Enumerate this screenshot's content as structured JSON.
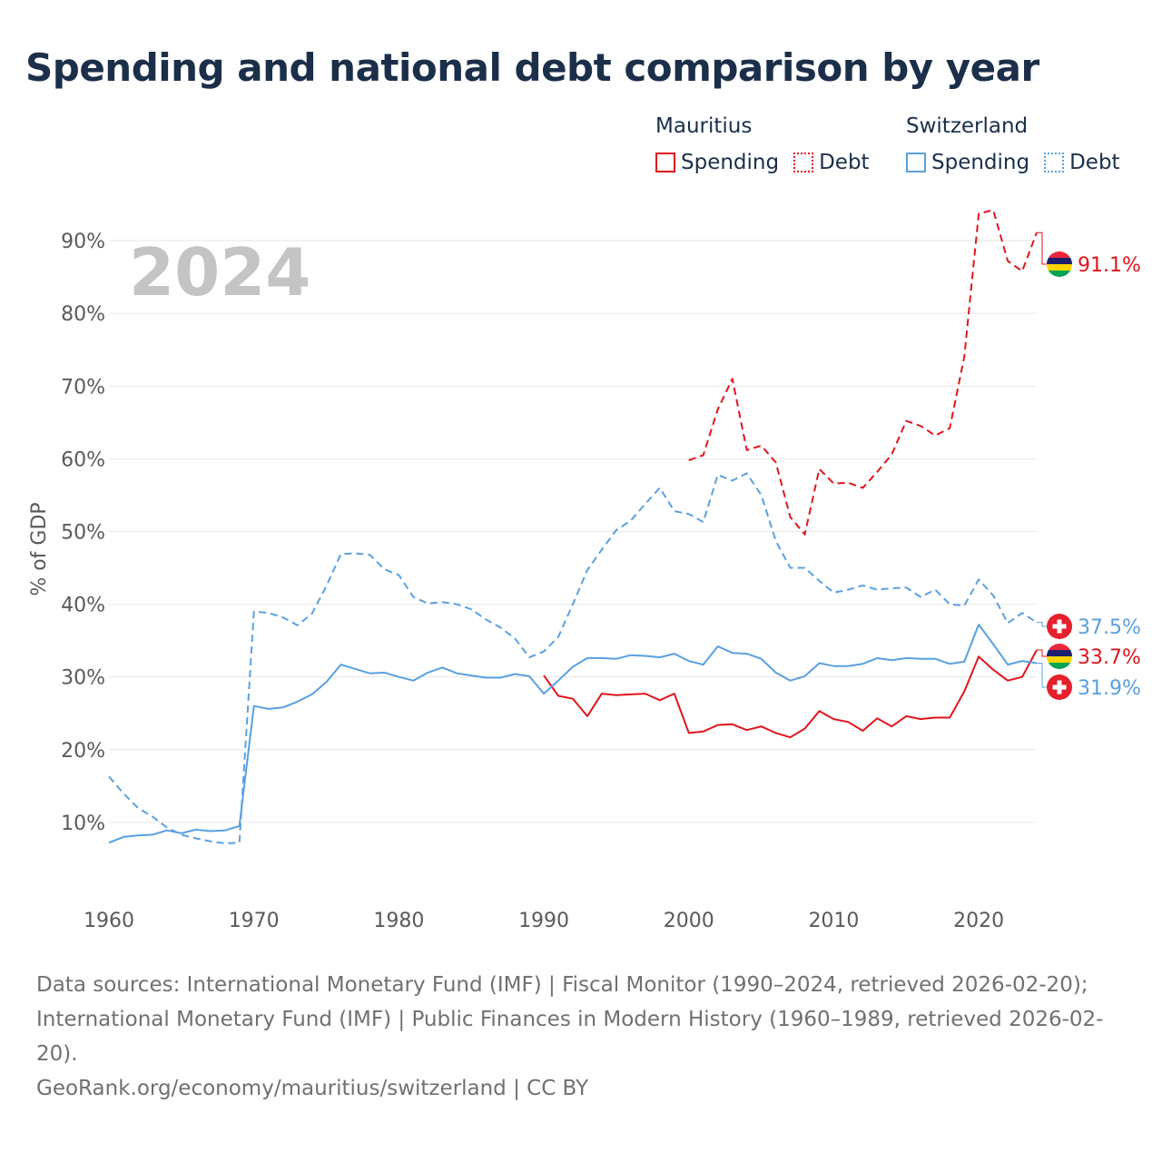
{
  "title": "Spending and national debt comparison by year",
  "legend": {
    "groups": [
      {
        "country": "Mauritius",
        "spending_label": "Spending",
        "debt_label": "Debt",
        "color": "#e0151c"
      },
      {
        "country": "Switzerland",
        "spending_label": "Spending",
        "debt_label": "Debt",
        "color": "#5aa0e0"
      }
    ]
  },
  "colors": {
    "mauritius": "#e0151c",
    "switzerland": "#5aa0e0",
    "year_watermark": "#c4c4c4",
    "axis_text": "#5a5a5a",
    "grid": "#e6e6e6"
  },
  "footer": {
    "sources": "Data sources: International Monetary Fund (IMF) | Fiscal Monitor (1990–2024, retrieved 2026-02-20); International Monetary Fund (IMF) | Public Finances in Modern History (1960–1989, retrieved 2026-02-20).",
    "credit": "GeoRank.org/economy/mauritius/switzerland | CC BY"
  },
  "chart_data": {
    "type": "line",
    "year_label": "2024",
    "ylabel": "% of GDP",
    "xlabel": "",
    "xlim": [
      1960,
      2024
    ],
    "ylim": [
      0,
      95
    ],
    "x_ticks": [
      1960,
      1970,
      1980,
      1990,
      2000,
      2010,
      2020
    ],
    "x_tick_labels": [
      "1960",
      "1970",
      "1980",
      "1990",
      "2000",
      "2010",
      "2020"
    ],
    "y_ticks": [
      10,
      20,
      30,
      40,
      50,
      60,
      70,
      80,
      90
    ],
    "y_tick_labels": [
      "10%",
      "20%",
      "30%",
      "40%",
      "50%",
      "60%",
      "70%",
      "80%",
      "90%"
    ],
    "series": [
      {
        "name": "Mauritius Debt",
        "country": "Mauritius",
        "metric": "Debt",
        "style": "dashed",
        "flag": "mauritius",
        "end_label": "91.1%",
        "end_value": 91.1,
        "x": [
          2000,
          2001,
          2002,
          2003,
          2004,
          2005,
          2006,
          2007,
          2008,
          2009,
          2010,
          2011,
          2012,
          2013,
          2014,
          2015,
          2016,
          2017,
          2018,
          2019,
          2020,
          2021,
          2022,
          2023,
          2024
        ],
        "values": [
          59.8,
          60.5,
          66.8,
          71.0,
          61.2,
          61.8,
          59.5,
          52.0,
          49.6,
          58.6,
          56.6,
          56.7,
          56.0,
          58.2,
          60.6,
          65.2,
          64.5,
          63.2,
          64.2,
          74.0,
          93.7,
          94.2,
          87.2,
          85.8,
          91.1
        ]
      },
      {
        "name": "Mauritius Spending",
        "country": "Mauritius",
        "metric": "Spending",
        "style": "solid",
        "flag": "mauritius",
        "end_label": "33.7%",
        "end_value": 33.7,
        "x": [
          1990,
          1991,
          1992,
          1993,
          1994,
          1995,
          1996,
          1997,
          1998,
          1999,
          2000,
          2001,
          2002,
          2003,
          2004,
          2005,
          2006,
          2007,
          2008,
          2009,
          2010,
          2011,
          2012,
          2013,
          2014,
          2015,
          2016,
          2017,
          2018,
          2019,
          2020,
          2021,
          2022,
          2023,
          2024
        ],
        "values": [
          30.2,
          27.4,
          27.0,
          24.6,
          27.7,
          27.5,
          27.6,
          27.7,
          26.8,
          27.7,
          22.3,
          22.5,
          23.4,
          23.5,
          22.7,
          23.2,
          22.3,
          21.7,
          22.9,
          25.3,
          24.2,
          23.8,
          22.6,
          24.3,
          23.2,
          24.6,
          24.2,
          24.4,
          24.4,
          28.0,
          32.8,
          31.0,
          29.5,
          30.0,
          33.7
        ]
      },
      {
        "name": "Switzerland Debt",
        "country": "Switzerland",
        "metric": "Debt",
        "style": "dashed",
        "flag": "switzerland",
        "end_label": "37.5%",
        "end_value": 37.5,
        "x": [
          1960,
          1961,
          1962,
          1963,
          1964,
          1965,
          1966,
          1967,
          1968,
          1969,
          1970,
          1971,
          1972,
          1973,
          1974,
          1975,
          1976,
          1977,
          1978,
          1979,
          1980,
          1981,
          1982,
          1983,
          1984,
          1985,
          1986,
          1987,
          1988,
          1989,
          1990,
          1991,
          1992,
          1993,
          1994,
          1995,
          1996,
          1997,
          1998,
          1999,
          2000,
          2001,
          2002,
          2003,
          2004,
          2005,
          2006,
          2007,
          2008,
          2009,
          2010,
          2011,
          2012,
          2013,
          2014,
          2015,
          2016,
          2017,
          2018,
          2019,
          2020,
          2021,
          2022,
          2023,
          2024
        ],
        "values": [
          16.3,
          14.0,
          12.0,
          10.8,
          9.3,
          8.3,
          7.8,
          7.4,
          7.1,
          7.2,
          39.0,
          38.8,
          38.2,
          37.1,
          38.7,
          42.5,
          46.9,
          47.0,
          46.8,
          44.8,
          44.0,
          41.0,
          40.1,
          40.3,
          40.0,
          39.3,
          37.9,
          36.8,
          35.3,
          32.7,
          33.5,
          35.5,
          40.0,
          44.7,
          47.5,
          50.2,
          51.5,
          53.8,
          56.0,
          52.8,
          52.4,
          51.3,
          57.8,
          57.0,
          58.0,
          55.0,
          48.7,
          45.0,
          45.0,
          43.2,
          41.6,
          42.0,
          42.6,
          42.0,
          42.2,
          42.3,
          41.0,
          42.0,
          40.0,
          39.8,
          43.4,
          41.2,
          37.4,
          38.8,
          37.5
        ]
      },
      {
        "name": "Switzerland Spending",
        "country": "Switzerland",
        "metric": "Spending",
        "style": "solid",
        "flag": "switzerland",
        "end_label": "31.9%",
        "end_value": 31.9,
        "x": [
          1960,
          1961,
          1962,
          1963,
          1964,
          1965,
          1966,
          1967,
          1968,
          1969,
          1970,
          1971,
          1972,
          1973,
          1974,
          1975,
          1976,
          1977,
          1978,
          1979,
          1980,
          1981,
          1982,
          1983,
          1984,
          1985,
          1986,
          1987,
          1988,
          1989,
          1990,
          1991,
          1992,
          1993,
          1994,
          1995,
          1996,
          1997,
          1998,
          1999,
          2000,
          2001,
          2002,
          2003,
          2004,
          2005,
          2006,
          2007,
          2008,
          2009,
          2010,
          2011,
          2012,
          2013,
          2014,
          2015,
          2016,
          2017,
          2018,
          2019,
          2020,
          2021,
          2022,
          2023,
          2024
        ],
        "values": [
          7.2,
          8.0,
          8.2,
          8.3,
          8.9,
          8.5,
          9.0,
          8.8,
          8.9,
          9.5,
          26.0,
          25.6,
          25.8,
          26.6,
          27.6,
          29.3,
          31.7,
          31.1,
          30.5,
          30.6,
          30.0,
          29.5,
          30.6,
          31.3,
          30.5,
          30.2,
          29.9,
          29.9,
          30.4,
          30.1,
          27.7,
          29.5,
          31.4,
          32.6,
          32.6,
          32.5,
          33.0,
          32.9,
          32.7,
          33.2,
          32.2,
          31.7,
          34.2,
          33.3,
          33.2,
          32.5,
          30.6,
          29.5,
          30.1,
          31.9,
          31.5,
          31.5,
          31.8,
          32.6,
          32.3,
          32.6,
          32.5,
          32.5,
          31.8,
          32.1,
          37.2,
          34.5,
          31.7,
          32.2,
          31.9
        ]
      }
    ]
  }
}
